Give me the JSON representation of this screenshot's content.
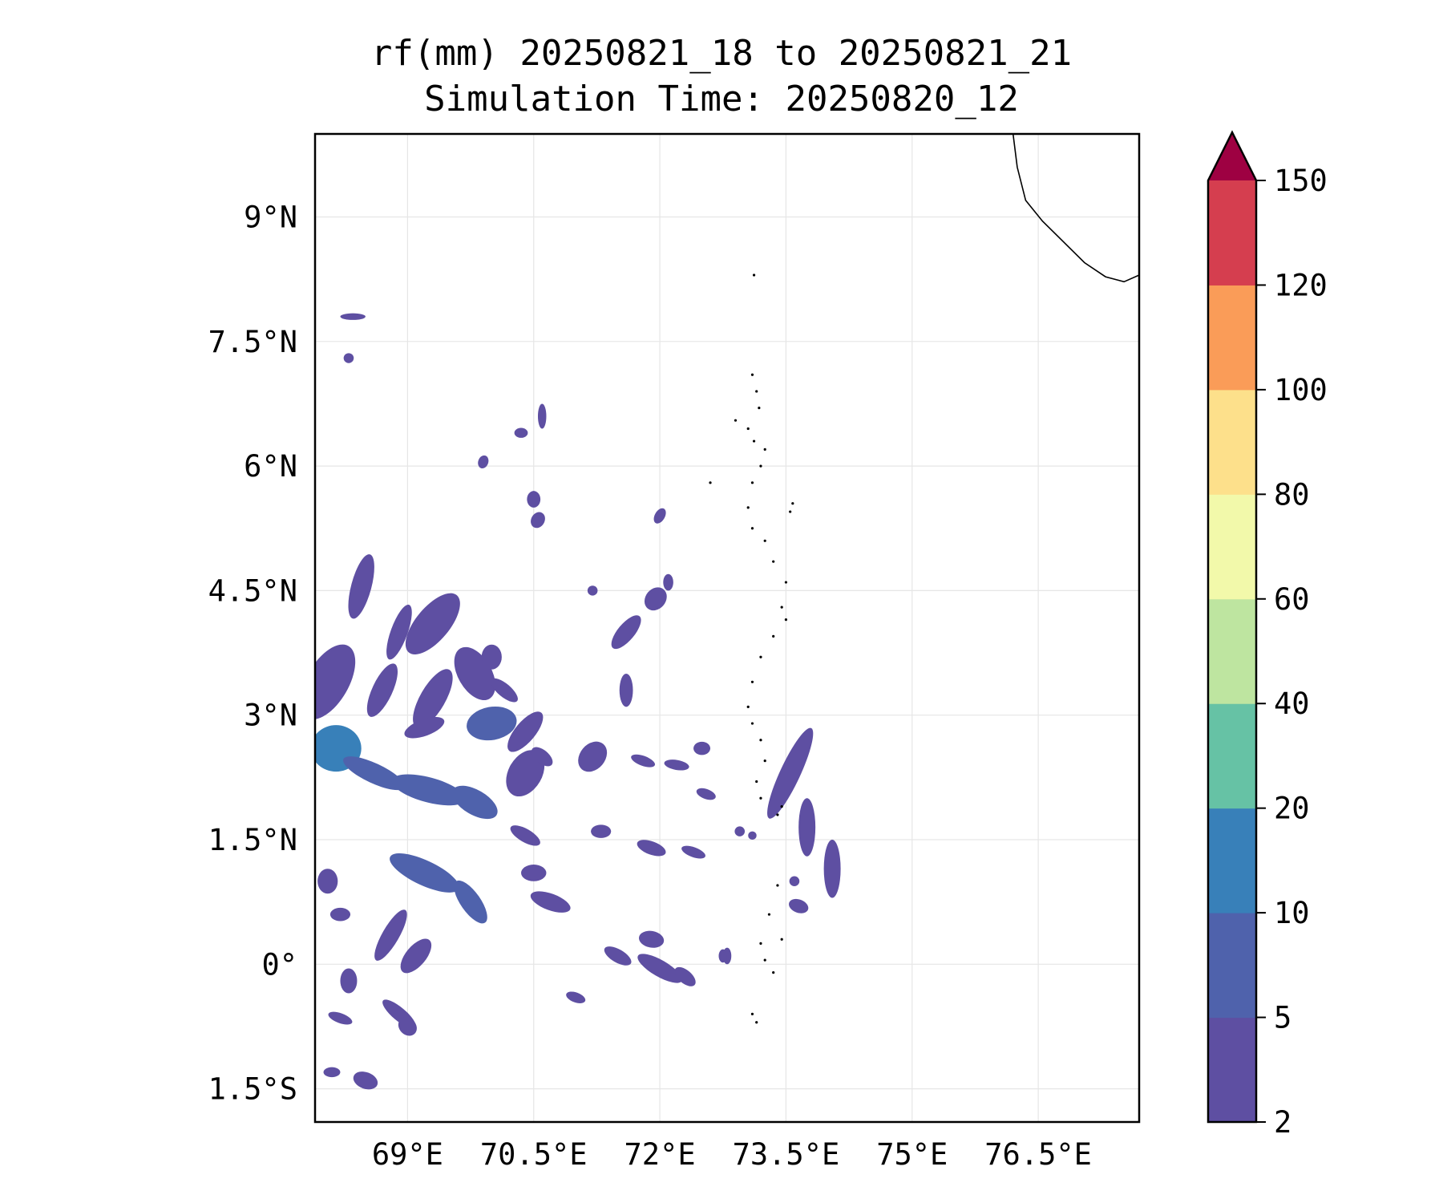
{
  "title": {
    "line1": "rf(mm) 20250821_18 to 20250821_21",
    "line2": "Simulation Time: 20250820_12"
  },
  "map": {
    "extent": {
      "lon_min": 67.9,
      "lon_max": 77.7,
      "lat_min": -1.9,
      "lat_max": 10.0
    },
    "lon_ticks": [
      {
        "value": 69.0,
        "label": "69°E"
      },
      {
        "value": 70.5,
        "label": "70.5°E"
      },
      {
        "value": 72.0,
        "label": "72°E"
      },
      {
        "value": 73.5,
        "label": "73.5°E"
      },
      {
        "value": 75.0,
        "label": "75°E"
      },
      {
        "value": 76.5,
        "label": "76.5°E"
      }
    ],
    "lat_ticks": [
      {
        "value": 9.0,
        "label": "9°N"
      },
      {
        "value": 7.5,
        "label": "7.5°N"
      },
      {
        "value": 6.0,
        "label": "6°N"
      },
      {
        "value": 4.5,
        "label": "4.5°N"
      },
      {
        "value": 3.0,
        "label": "3°N"
      },
      {
        "value": 1.5,
        "label": "1.5°N"
      },
      {
        "value": 0.0,
        "label": "0°"
      },
      {
        "value": -1.5,
        "label": "1.5°S"
      }
    ],
    "gridlines": true,
    "coastline_india": [
      [
        76.2,
        10.0
      ],
      [
        76.25,
        9.6
      ],
      [
        76.35,
        9.2
      ],
      [
        76.55,
        8.95
      ],
      [
        76.8,
        8.7
      ],
      [
        77.05,
        8.45
      ],
      [
        77.3,
        8.28
      ],
      [
        77.52,
        8.22
      ],
      [
        77.7,
        8.3
      ]
    ],
    "maldives_atolls": [
      [
        73.1,
        7.1
      ],
      [
        73.15,
        6.9
      ],
      [
        73.18,
        6.7
      ],
      [
        73.05,
        6.45
      ],
      [
        73.12,
        6.3
      ],
      [
        73.25,
        6.2
      ],
      [
        73.2,
        6.0
      ],
      [
        73.1,
        5.8
      ],
      [
        73.05,
        5.5
      ],
      [
        73.1,
        5.25
      ],
      [
        73.25,
        5.1
      ],
      [
        73.35,
        4.85
      ],
      [
        73.5,
        4.6
      ],
      [
        73.45,
        4.3
      ],
      [
        73.5,
        4.15
      ],
      [
        73.35,
        3.95
      ],
      [
        73.2,
        3.7
      ],
      [
        73.1,
        3.4
      ],
      [
        73.05,
        3.1
      ],
      [
        73.1,
        2.9
      ],
      [
        73.2,
        2.7
      ],
      [
        73.25,
        2.45
      ],
      [
        73.15,
        2.2
      ],
      [
        73.2,
        2.0
      ],
      [
        73.4,
        1.8
      ],
      [
        73.45,
        1.9
      ],
      [
        73.4,
        0.95
      ],
      [
        73.3,
        0.6
      ],
      [
        73.2,
        0.25
      ],
      [
        73.25,
        0.05
      ],
      [
        73.35,
        -0.1
      ],
      [
        73.45,
        0.3
      ],
      [
        73.1,
        -0.6
      ],
      [
        73.15,
        -0.7
      ],
      [
        72.6,
        5.8
      ],
      [
        73.55,
        5.45
      ],
      [
        73.58,
        5.55
      ],
      [
        72.9,
        6.55
      ],
      [
        73.12,
        8.3
      ]
    ]
  },
  "chart_data": {
    "type": "heatmap",
    "title": "rf(mm) 20250821_18 to 20250821_21\nSimulation Time: 20250820_12",
    "xlabel": "",
    "ylabel": "",
    "variable": "rf(mm)",
    "xlim": [
      67.9,
      77.7
    ],
    "ylim": [
      -1.9,
      10.0
    ],
    "colorbar": {
      "levels": [
        2,
        5,
        10,
        20,
        40,
        60,
        80,
        100,
        120,
        150
      ],
      "labels": [
        "2",
        "5",
        "10",
        "20",
        "40",
        "60",
        "80",
        "100",
        "120",
        "150"
      ],
      "colors": [
        "#5e4fa2",
        "#4f62ac",
        "#3880b9",
        "#66c2a5",
        "#bee5a0",
        "#f2f9aa",
        "#fde08b",
        "#fa9c58",
        "#d53e4f"
      ],
      "extend_max_color": "#9e0142",
      "extend": "max"
    },
    "rain_cells": [
      {
        "lon": 68.05,
        "lat": 3.4,
        "dlon": 0.25,
        "dlat": 0.5,
        "rot": 30,
        "v": 4
      },
      {
        "lon": 68.45,
        "lat": 4.55,
        "dlon": 0.12,
        "dlat": 0.4,
        "rot": 15,
        "v": 3
      },
      {
        "lon": 68.9,
        "lat": 4.0,
        "dlon": 0.1,
        "dlat": 0.35,
        "rot": 20,
        "v": 3
      },
      {
        "lon": 69.3,
        "lat": 4.1,
        "dlon": 0.2,
        "dlat": 0.45,
        "rot": 40,
        "v": 4
      },
      {
        "lon": 69.8,
        "lat": 3.5,
        "dlon": 0.2,
        "dlat": 0.35,
        "rot": -30,
        "v": 3
      },
      {
        "lon": 69.3,
        "lat": 3.2,
        "dlon": 0.15,
        "dlat": 0.4,
        "rot": 30,
        "v": 3
      },
      {
        "lon": 68.7,
        "lat": 3.3,
        "dlon": 0.12,
        "dlat": 0.35,
        "rot": 25,
        "v": 3
      },
      {
        "lon": 68.15,
        "lat": 2.6,
        "dlon": 0.3,
        "dlat": 0.28,
        "rot": 0,
        "v": 12
      },
      {
        "lon": 68.6,
        "lat": 2.3,
        "dlon": 0.4,
        "dlat": 0.12,
        "rot": 25,
        "v": 7
      },
      {
        "lon": 69.25,
        "lat": 2.1,
        "dlon": 0.45,
        "dlat": 0.15,
        "rot": 15,
        "v": 8
      },
      {
        "lon": 69.8,
        "lat": 1.95,
        "dlon": 0.3,
        "dlat": 0.15,
        "rot": 30,
        "v": 9
      },
      {
        "lon": 69.2,
        "lat": 2.85,
        "dlon": 0.25,
        "dlat": 0.1,
        "rot": -20,
        "v": 4
      },
      {
        "lon": 70.0,
        "lat": 2.9,
        "dlon": 0.3,
        "dlat": 0.2,
        "rot": -10,
        "v": 5
      },
      {
        "lon": 70.4,
        "lat": 2.3,
        "dlon": 0.2,
        "dlat": 0.3,
        "rot": 30,
        "v": 4
      },
      {
        "lon": 69.2,
        "lat": 1.1,
        "dlon": 0.45,
        "dlat": 0.15,
        "rot": 25,
        "v": 8
      },
      {
        "lon": 69.75,
        "lat": 0.75,
        "dlon": 0.3,
        "dlat": 0.12,
        "rot": 55,
        "v": 6
      },
      {
        "lon": 68.05,
        "lat": 1.0,
        "dlon": 0.12,
        "dlat": 0.15,
        "rot": 0,
        "v": 4
      },
      {
        "lon": 68.2,
        "lat": 0.6,
        "dlon": 0.12,
        "dlat": 0.08,
        "rot": 0,
        "v": 3
      },
      {
        "lon": 68.8,
        "lat": 0.35,
        "dlon": 0.1,
        "dlat": 0.35,
        "rot": 30,
        "v": 3
      },
      {
        "lon": 69.1,
        "lat": 0.1,
        "dlon": 0.12,
        "dlat": 0.25,
        "rot": 40,
        "v": 3
      },
      {
        "lon": 68.3,
        "lat": -0.2,
        "dlon": 0.1,
        "dlat": 0.15,
        "rot": 0,
        "v": 3
      },
      {
        "lon": 68.9,
        "lat": -0.6,
        "dlon": 0.25,
        "dlat": 0.08,
        "rot": 40,
        "v": 3
      },
      {
        "lon": 69.0,
        "lat": -0.75,
        "dlon": 0.12,
        "dlat": 0.1,
        "rot": 45,
        "v": 3
      },
      {
        "lon": 68.2,
        "lat": -0.65,
        "dlon": 0.15,
        "dlat": 0.06,
        "rot": 20,
        "v": 3
      },
      {
        "lon": 68.5,
        "lat": -1.4,
        "dlon": 0.15,
        "dlat": 0.1,
        "rot": 20,
        "v": 3
      },
      {
        "lon": 68.1,
        "lat": -1.3,
        "dlon": 0.1,
        "dlat": 0.06,
        "rot": 0,
        "v": 3
      },
      {
        "lon": 70.0,
        "lat": 3.7,
        "dlon": 0.12,
        "dlat": 0.15,
        "rot": 0,
        "v": 3
      },
      {
        "lon": 70.15,
        "lat": 3.3,
        "dlon": 0.2,
        "dlat": 0.08,
        "rot": 40,
        "v": 3
      },
      {
        "lon": 70.4,
        "lat": 2.8,
        "dlon": 0.12,
        "dlat": 0.3,
        "rot": 40,
        "v": 3
      },
      {
        "lon": 70.6,
        "lat": 2.5,
        "dlon": 0.15,
        "dlat": 0.08,
        "rot": 40,
        "v": 3
      },
      {
        "lon": 70.4,
        "lat": 1.55,
        "dlon": 0.2,
        "dlat": 0.08,
        "rot": 30,
        "v": 3
      },
      {
        "lon": 70.5,
        "lat": 1.1,
        "dlon": 0.15,
        "dlat": 0.1,
        "rot": 0,
        "v": 3
      },
      {
        "lon": 70.7,
        "lat": 0.75,
        "dlon": 0.25,
        "dlat": 0.1,
        "rot": 20,
        "v": 4
      },
      {
        "lon": 70.6,
        "lat": 6.6,
        "dlon": 0.05,
        "dlat": 0.15,
        "rot": 0,
        "v": 3
      },
      {
        "lon": 70.35,
        "lat": 6.4,
        "dlon": 0.08,
        "dlat": 0.06,
        "rot": 0,
        "v": 3
      },
      {
        "lon": 69.9,
        "lat": 6.05,
        "dlon": 0.06,
        "dlat": 0.08,
        "rot": 20,
        "v": 3
      },
      {
        "lon": 70.55,
        "lat": 5.35,
        "dlon": 0.08,
        "dlat": 0.1,
        "rot": 30,
        "v": 3
      },
      {
        "lon": 68.35,
        "lat": 7.8,
        "dlon": 0.15,
        "dlat": 0.04,
        "rot": 0,
        "v": 3
      },
      {
        "lon": 68.3,
        "lat": 7.3,
        "dlon": 0.06,
        "dlat": 0.06,
        "rot": 0,
        "v": 3
      },
      {
        "lon": 71.6,
        "lat": 4.0,
        "dlon": 0.1,
        "dlat": 0.25,
        "rot": 40,
        "v": 3
      },
      {
        "lon": 71.95,
        "lat": 4.4,
        "dlon": 0.12,
        "dlat": 0.15,
        "rot": 40,
        "v": 3
      },
      {
        "lon": 71.6,
        "lat": 3.3,
        "dlon": 0.08,
        "dlat": 0.2,
        "rot": 0,
        "v": 3
      },
      {
        "lon": 71.8,
        "lat": 2.45,
        "dlon": 0.15,
        "dlat": 0.06,
        "rot": 20,
        "v": 3
      },
      {
        "lon": 71.9,
        "lat": 1.4,
        "dlon": 0.18,
        "dlat": 0.08,
        "rot": 20,
        "v": 3
      },
      {
        "lon": 71.2,
        "lat": 2.5,
        "dlon": 0.15,
        "dlat": 0.2,
        "rot": 40,
        "v": 3
      },
      {
        "lon": 71.3,
        "lat": 1.6,
        "dlon": 0.12,
        "dlat": 0.08,
        "rot": 0,
        "v": 3
      },
      {
        "lon": 71.5,
        "lat": 0.1,
        "dlon": 0.18,
        "dlat": 0.08,
        "rot": 30,
        "v": 3
      },
      {
        "lon": 71.9,
        "lat": 0.3,
        "dlon": 0.15,
        "dlat": 0.1,
        "rot": 10,
        "v": 3
      },
      {
        "lon": 72.0,
        "lat": -0.05,
        "dlon": 0.3,
        "dlat": 0.1,
        "rot": 30,
        "v": 3
      },
      {
        "lon": 72.3,
        "lat": -0.15,
        "dlon": 0.15,
        "dlat": 0.08,
        "rot": 40,
        "v": 3
      },
      {
        "lon": 72.4,
        "lat": 1.35,
        "dlon": 0.15,
        "dlat": 0.06,
        "rot": 20,
        "v": 3
      },
      {
        "lon": 72.5,
        "lat": 2.6,
        "dlon": 0.1,
        "dlat": 0.08,
        "rot": 0,
        "v": 3
      },
      {
        "lon": 72.55,
        "lat": 2.05,
        "dlon": 0.12,
        "dlat": 0.06,
        "rot": 20,
        "v": 3
      },
      {
        "lon": 72.2,
        "lat": 2.4,
        "dlon": 0.15,
        "dlat": 0.06,
        "rot": 10,
        "v": 3
      },
      {
        "lon": 72.8,
        "lat": 0.1,
        "dlon": 0.05,
        "dlat": 0.1,
        "rot": 0,
        "v": 3
      },
      {
        "lon": 73.55,
        "lat": 2.3,
        "dlon": 0.12,
        "dlat": 0.6,
        "rot": 25,
        "v": 4
      },
      {
        "lon": 73.75,
        "lat": 1.65,
        "dlon": 0.1,
        "dlat": 0.35,
        "rot": 0,
        "v": 4
      },
      {
        "lon": 74.05,
        "lat": 1.15,
        "dlon": 0.1,
        "dlat": 0.35,
        "rot": 0,
        "v": 4
      },
      {
        "lon": 73.65,
        "lat": 0.7,
        "dlon": 0.12,
        "dlat": 0.08,
        "rot": 20,
        "v": 3
      },
      {
        "lon": 73.6,
        "lat": 1.0,
        "dlon": 0.06,
        "dlat": 0.06,
        "rot": 0,
        "v": 3
      },
      {
        "lon": 72.95,
        "lat": 1.6,
        "dlon": 0.06,
        "dlat": 0.06,
        "rot": 0,
        "v": 3
      },
      {
        "lon": 72.75,
        "lat": 0.1,
        "dlon": 0.05,
        "dlat": 0.08,
        "rot": 0,
        "v": 3
      },
      {
        "lon": 73.1,
        "lat": 1.55,
        "dlon": 0.05,
        "dlat": 0.05,
        "rot": 0,
        "v": 3
      },
      {
        "lon": 71.0,
        "lat": -0.4,
        "dlon": 0.12,
        "dlat": 0.06,
        "rot": 20,
        "v": 3
      },
      {
        "lon": 70.5,
        "lat": 5.6,
        "dlon": 0.08,
        "dlat": 0.1,
        "rot": 0,
        "v": 3
      },
      {
        "lon": 72.0,
        "lat": 5.4,
        "dlon": 0.06,
        "dlat": 0.1,
        "rot": 30,
        "v": 3
      },
      {
        "lon": 71.2,
        "lat": 4.5,
        "dlon": 0.06,
        "dlat": 0.06,
        "rot": 0,
        "v": 3
      },
      {
        "lon": 72.1,
        "lat": 4.6,
        "dlon": 0.06,
        "dlat": 0.1,
        "rot": 0,
        "v": 3
      }
    ]
  }
}
